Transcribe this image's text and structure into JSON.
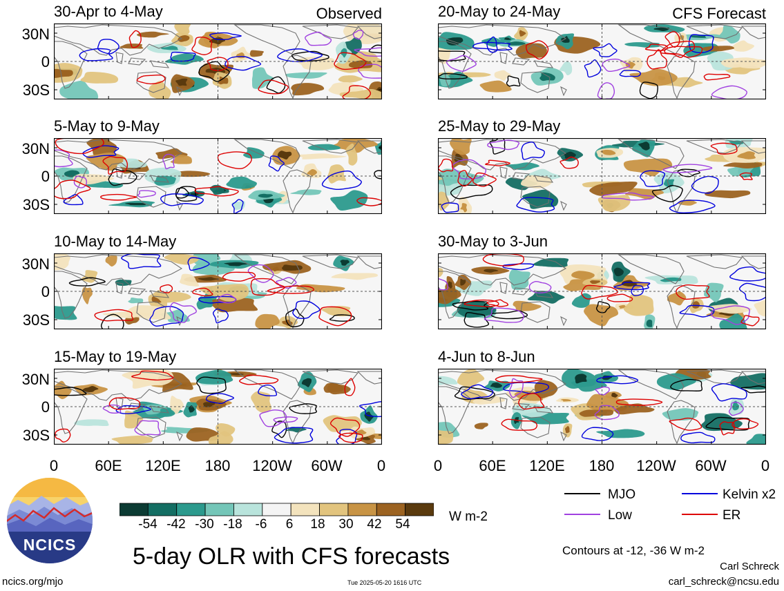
{
  "figure": {
    "title": "5-day OLR with CFS forecasts",
    "units": "W m-2",
    "contour_note": "Contours at -12, -36 W m-2",
    "author": "Carl Schreck",
    "email": "carl_schreck@ncsu.edu",
    "website": "ncics.org/mjo",
    "timestamp": "Tue 2025-05-20 1616 UTC",
    "logo_text": "NCICS"
  },
  "columns": [
    {
      "label": "Observed"
    },
    {
      "label": "CFS Forecast"
    }
  ],
  "panels": [
    {
      "title": "30-Apr to 4-May",
      "source": "Observed",
      "seed": 11
    },
    {
      "title": "5-May to 9-May",
      "source": "Observed",
      "seed": 23
    },
    {
      "title": "10-May to 14-May",
      "source": "Observed",
      "seed": 37
    },
    {
      "title": "15-May to 19-May",
      "source": "Observed",
      "seed": 41
    },
    {
      "title": "20-May to 24-May",
      "source": "CFS Forecast",
      "seed": 53
    },
    {
      "title": "25-May to 29-May",
      "source": "CFS Forecast",
      "seed": 67
    },
    {
      "title": "30-May to 3-Jun",
      "source": "CFS Forecast",
      "seed": 71
    },
    {
      "title": "4-Jun to 8-Jun",
      "source": "CFS Forecast",
      "seed": 89
    }
  ],
  "lat_ticks": [
    "30N",
    "0",
    "30S"
  ],
  "lon_ticks": [
    "0",
    "60E",
    "120E",
    "180",
    "120W",
    "60W",
    "0"
  ],
  "colorbar": {
    "colors": [
      "#0c3b33",
      "#146e63",
      "#2c9a8d",
      "#74c6b8",
      "#b9e4dc",
      "#f4f4f4",
      "#f3e3bd",
      "#e2c47e",
      "#c89445",
      "#9c6321",
      "#5a3a0e"
    ],
    "ticks": [
      "-54",
      "-42",
      "-30",
      "-18",
      "-6",
      "6",
      "18",
      "30",
      "42",
      "54"
    ]
  },
  "legend": [
    {
      "label": "MJO",
      "color": "#000000"
    },
    {
      "label": "Kelvin x2",
      "color": "#0000dd"
    },
    {
      "label": "Low",
      "color": "#a040e0"
    },
    {
      "label": "ER",
      "color": "#dd0000"
    }
  ]
}
